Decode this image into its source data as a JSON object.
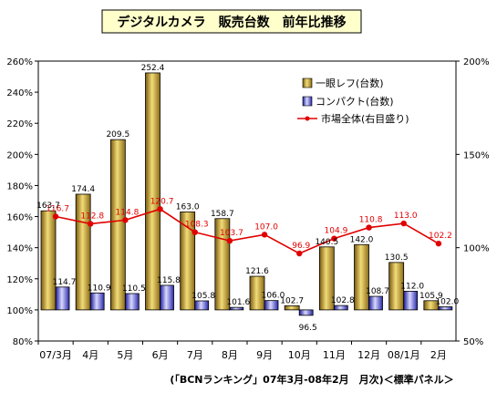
{
  "chart_data": {
    "type": "bar",
    "title": "デジタルカメラ　販売台数　前年比推移",
    "footnote": "(「BCNランキング」07年3月-08年2月　月次)＜標準パネル＞",
    "categories": [
      "07/3月",
      "4月",
      "5月",
      "6月",
      "7月",
      "8月",
      "9月",
      "10月",
      "11月",
      "12月",
      "08/1月",
      "2月"
    ],
    "y_left": {
      "min": 80,
      "max": 260,
      "step": 20,
      "unit": "%",
      "ticks": [
        "80%",
        "100%",
        "120%",
        "140%",
        "160%",
        "180%",
        "200%",
        "220%",
        "240%",
        "260%"
      ]
    },
    "y_right": {
      "min": 50,
      "max": 200,
      "step": 50,
      "unit": "%",
      "ticks": [
        "50%",
        "100%",
        "150%",
        "200%"
      ]
    },
    "legend_position": "top-right",
    "grid": false,
    "series": [
      {
        "name": "一眼レフ(台数)",
        "kind": "bar",
        "axis": "left",
        "color": "#c8a830",
        "values": [
          163.7,
          174.4,
          209.5,
          252.4,
          163.0,
          158.7,
          121.6,
          102.7,
          140.5,
          142.0,
          130.5,
          105.9
        ],
        "labels": [
          "163.7",
          "174.4",
          "209.5",
          "252.4",
          "163.0",
          "158.7",
          "121.6",
          "102.7",
          "140.5",
          "142.0",
          "130.5",
          "105.9"
        ]
      },
      {
        "name": "コンパクト(台数)",
        "kind": "bar",
        "axis": "left",
        "color": "#5a5ad8",
        "values": [
          114.7,
          110.9,
          110.5,
          115.8,
          105.8,
          101.6,
          106.0,
          96.5,
          102.8,
          108.7,
          112.0,
          102.0
        ],
        "labels": [
          "114.7",
          "110.9",
          "110.5",
          "115.8",
          "105.8",
          "101.6",
          "106.0",
          "96.5",
          "102.8",
          "108.7",
          "112.0",
          "102.0"
        ]
      },
      {
        "name": "市場全体(右目盛り)",
        "kind": "line",
        "axis": "right",
        "color": "#e00000",
        "values": [
          116.7,
          112.8,
          114.8,
          120.7,
          108.3,
          103.7,
          107.0,
          96.9,
          104.9,
          110.8,
          113.0,
          102.2
        ],
        "labels": [
          "116.7",
          "112.8",
          "114.8",
          "120.7",
          "108.3",
          "103.7",
          "107.0",
          "96.9",
          "104.9",
          "110.8",
          "113.0",
          "102.2"
        ]
      }
    ]
  }
}
